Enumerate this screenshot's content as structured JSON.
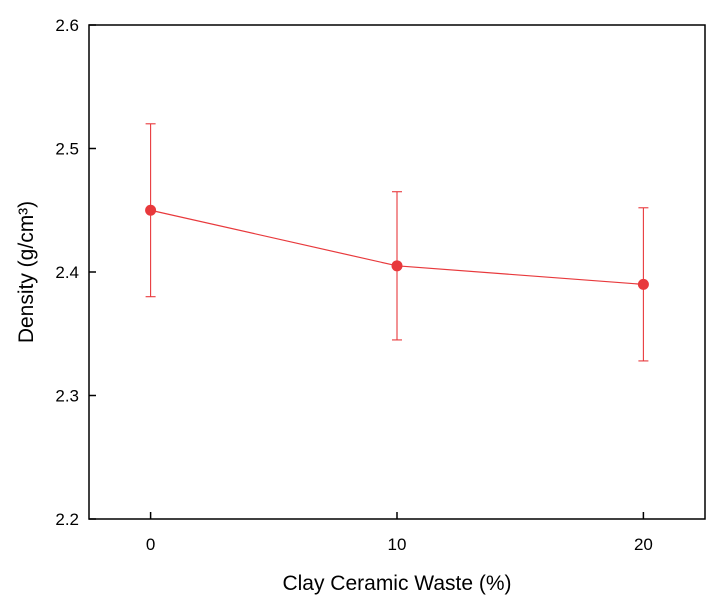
{
  "chart_data": {
    "type": "line",
    "x": [
      0,
      10,
      20
    ],
    "series": [
      {
        "values": [
          2.45,
          2.405,
          2.39
        ],
        "error_low": [
          2.38,
          2.345,
          2.328
        ],
        "error_high": [
          2.52,
          2.465,
          2.452
        ],
        "color": "#e8393c"
      }
    ],
    "xlabel": "Clay Ceramic Waste (%)",
    "ylabel": "Density (g/cm³)",
    "xticks": [
      "0",
      "10",
      "20"
    ],
    "yticks": [
      "2.2",
      "2.3",
      "2.4",
      "2.5",
      "2.6"
    ],
    "xlim": [
      -2.5,
      22.5
    ],
    "ylim": [
      2.2,
      2.6
    ],
    "grid": false,
    "legend": "none"
  }
}
